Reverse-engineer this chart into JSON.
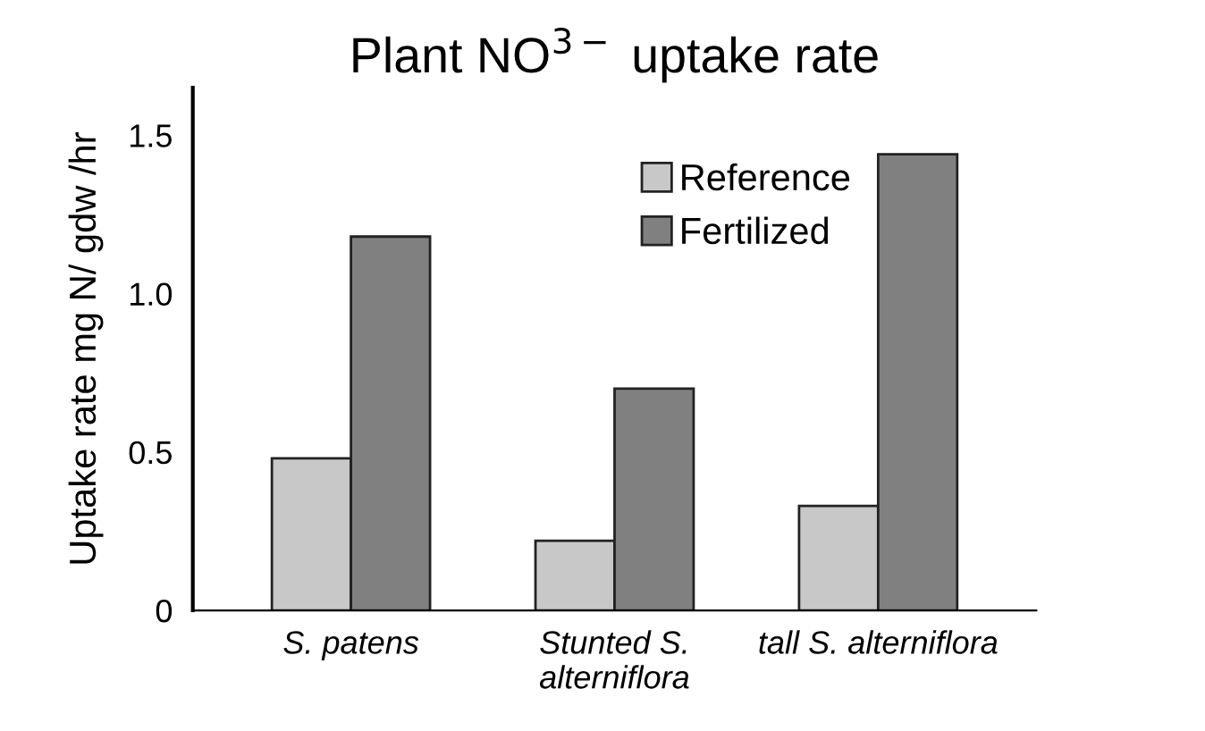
{
  "chart_data": {
    "type": "bar",
    "title": "Plant NO$^{3−}$ uptake rate",
    "ylabel": "Uptake rate mg N/ gdw /hr",
    "categories": [
      "S. patens",
      "Stunted S.\nalterniflora",
      "tall S. alterniflora"
    ],
    "series": [
      {
        "name": "Reference",
        "color": "#c8c8c8",
        "values": [
          0.48,
          0.22,
          0.33
        ]
      },
      {
        "name": "Fertilized",
        "color": "#808080",
        "values": [
          1.18,
          0.7,
          1.44
        ]
      }
    ],
    "ylim": [
      0,
      1.65
    ],
    "yticks": [
      0,
      {
        "value": 0.5,
        "label": "0.5"
      },
      {
        "value": 1.0,
        "label": "1.0"
      },
      {
        "value": 1.5,
        "label": "1.5"
      }
    ],
    "grid": false,
    "legend": "top right"
  }
}
